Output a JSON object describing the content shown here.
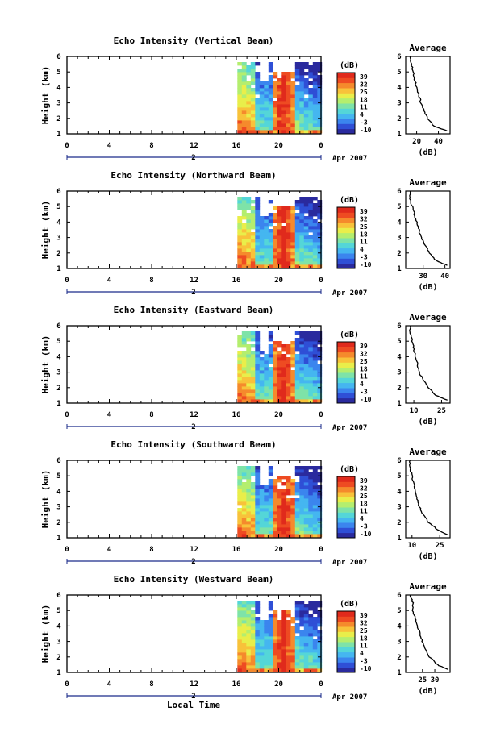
{
  "colors": {
    "scale": [
      "#2a2a9e",
      "#2f4fd6",
      "#3b85ee",
      "#45b6f0",
      "#54d6d8",
      "#7ee3a8",
      "#b4ee6e",
      "#e9ee4a",
      "#f8c23a",
      "#f58a2c",
      "#ee4b22",
      "#e02a1c"
    ],
    "axis": "#000000",
    "date_bar": "#1a2a8a"
  },
  "panels": [
    {
      "title": "Echo Intensity (Vertical Beam)",
      "avg_xticks": [
        "20",
        "40"
      ]
    },
    {
      "title": "Echo Intensity (Northward Beam)",
      "avg_xticks": [
        "30",
        "40"
      ]
    },
    {
      "title": "Echo Intensity (Eastward Beam)",
      "avg_xticks": [
        "10",
        "25"
      ]
    },
    {
      "title": "Echo Intensity (Southward Beam)",
      "avg_xticks": [
        "10",
        "25"
      ]
    },
    {
      "title": "Echo Intensity (Westward Beam)",
      "avg_xticks": [
        "25",
        "30"
      ]
    }
  ],
  "shared": {
    "ylabel": "Height (km)",
    "yticks": [
      "1",
      "2",
      "3",
      "4",
      "5",
      "6"
    ],
    "xticks": [
      "0",
      "4",
      "8",
      "12",
      "16",
      "20",
      "0"
    ],
    "date_label": "2",
    "date_month": "Apr 2007",
    "colorbar_unit": "(dB)",
    "colorbar_ticks": [
      "39",
      "32",
      "25",
      "18",
      "11",
      "4",
      "-3",
      "-10"
    ],
    "avg_title": "Average",
    "avg_xlabel": "(dB)",
    "avg_yticks": [
      "1",
      "2",
      "3",
      "4",
      "5",
      "6"
    ],
    "xlabel": "Local Time"
  },
  "chart_data": [
    {
      "type": "heatmap",
      "title": "Echo Intensity (Vertical Beam)",
      "x_range": [
        0,
        24
      ],
      "y_range": [
        1,
        6
      ],
      "xlabel": "Local Time",
      "ylabel": "Height (km)",
      "colorbar_range": [
        -10,
        39
      ],
      "data_span_hours": [
        15.5,
        24
      ],
      "average_profile": {
        "x_ticks": [
          20,
          40
        ],
        "height": [
          1.2,
          1.5,
          2.0,
          2.5,
          3.0,
          3.5,
          4.0,
          4.5,
          5.0,
          5.5,
          6.0
        ],
        "value": [
          48,
          36,
          30,
          27,
          24,
          22,
          20,
          18,
          17,
          15,
          14
        ]
      }
    },
    {
      "type": "heatmap",
      "title": "Echo Intensity (Northward Beam)",
      "x_range": [
        0,
        24
      ],
      "y_range": [
        1,
        6
      ],
      "xlabel": "Local Time",
      "ylabel": "Height (km)",
      "colorbar_range": [
        -10,
        39
      ],
      "data_span_hours": [
        15.5,
        24
      ],
      "average_profile": {
        "x_ticks": [
          30,
          40
        ],
        "height": [
          1.2,
          1.5,
          2.0,
          2.5,
          3.0,
          3.5,
          4.0,
          4.5,
          5.0,
          5.5,
          6.0
        ],
        "value": [
          41,
          36,
          33,
          31,
          29,
          28,
          27,
          26,
          25,
          24,
          24
        ]
      }
    },
    {
      "type": "heatmap",
      "title": "Echo Intensity (Eastward Beam)",
      "x_range": [
        0,
        24
      ],
      "y_range": [
        1,
        6
      ],
      "xlabel": "Local Time",
      "ylabel": "Height (km)",
      "colorbar_range": [
        -10,
        39
      ],
      "data_span_hours": [
        15.5,
        24
      ],
      "average_profile": {
        "x_ticks": [
          10,
          25
        ],
        "height": [
          1.2,
          1.5,
          2.0,
          2.5,
          3.0,
          3.5,
          4.0,
          4.5,
          5.0,
          5.5,
          6.0
        ],
        "value": [
          28,
          22,
          18,
          15,
          13,
          12,
          11,
          10,
          9,
          8,
          8
        ]
      }
    },
    {
      "type": "heatmap",
      "title": "Echo Intensity (Southward Beam)",
      "x_range": [
        0,
        24
      ],
      "y_range": [
        1,
        6
      ],
      "xlabel": "Local Time",
      "ylabel": "Height (km)",
      "colorbar_range": [
        -10,
        39
      ],
      "data_span_hours": [
        15.5,
        24
      ],
      "average_profile": {
        "x_ticks": [
          10,
          25
        ],
        "height": [
          1.2,
          1.5,
          2.0,
          2.5,
          3.0,
          3.5,
          4.0,
          4.5,
          5.0,
          5.5,
          6.0
        ],
        "value": [
          29,
          24,
          19,
          16,
          14,
          13,
          12,
          11,
          10,
          9,
          9
        ]
      }
    },
    {
      "type": "heatmap",
      "title": "Echo Intensity (Westward Beam)",
      "x_range": [
        0,
        24
      ],
      "y_range": [
        1,
        6
      ],
      "xlabel": "Local Time",
      "ylabel": "Height (km)",
      "colorbar_range": [
        -10,
        39
      ],
      "data_span_hours": [
        15.5,
        24
      ],
      "average_profile": {
        "x_ticks": [
          25,
          30
        ],
        "height": [
          1.2,
          1.5,
          2.0,
          2.5,
          3.0,
          3.5,
          4.0,
          4.5,
          5.0,
          5.5,
          6.0
        ],
        "value": [
          35,
          31,
          28,
          26,
          25,
          24,
          23,
          22,
          21,
          21,
          20
        ]
      }
    }
  ]
}
